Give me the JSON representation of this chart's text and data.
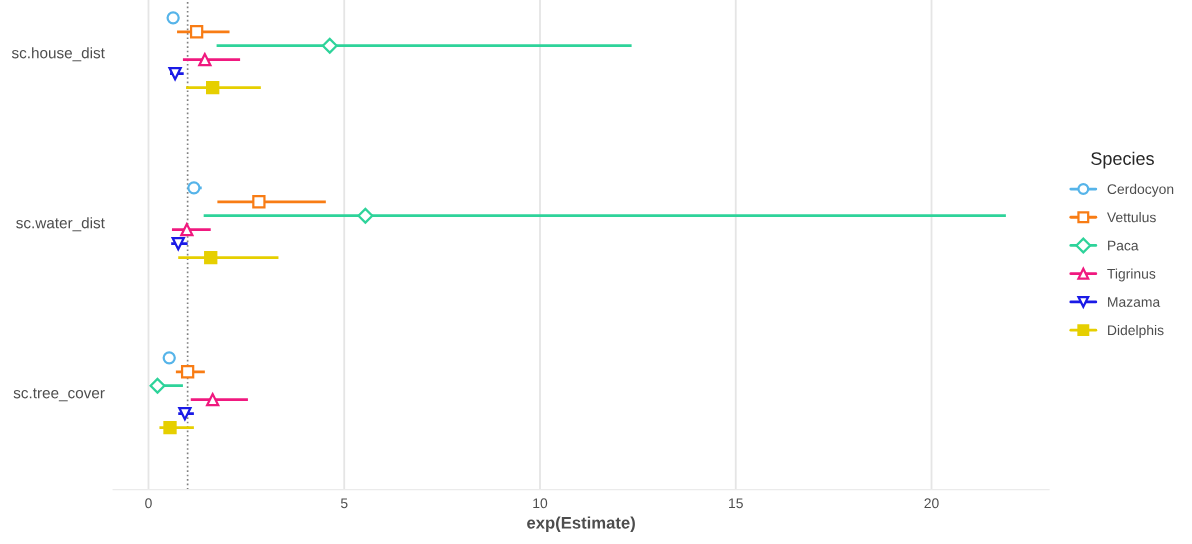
{
  "chart_data": {
    "type": "scatter",
    "orientation": "horizontal",
    "xlabel": "exp(Estimate)",
    "legend_title": "Species",
    "legend": "right",
    "grid": "x",
    "categories": [
      "sc.house_dist",
      "sc.water_dist",
      "sc.tree_cover"
    ],
    "xlim": [
      -0.9,
      23.0
    ],
    "xticks": [
      0,
      5,
      10,
      15,
      20
    ],
    "ref_lines": [
      {
        "axis": "x",
        "value": 1,
        "line_style": "dotted",
        "color": "#808080"
      }
    ],
    "series": [
      {
        "name": "Cerdocyon",
        "color": "#56b4e9",
        "marker": "circle",
        "values": [
          0.63,
          1.16,
          0.53
        ],
        "errors": [
          null,
          [
            1.06,
            1.36
          ],
          null
        ]
      },
      {
        "name": "Vettulus",
        "color": "#f87c14",
        "marker": "square",
        "values": [
          1.23,
          2.82,
          1.0
        ],
        "errors": [
          [
            0.73,
            2.07
          ],
          [
            1.76,
            4.53
          ],
          [
            0.7,
            1.44
          ]
        ]
      },
      {
        "name": "Paca",
        "color": "#2ed39a",
        "marker": "diamond",
        "values": [
          4.63,
          5.54,
          0.23
        ],
        "errors": [
          [
            1.74,
            12.34
          ],
          [
            1.41,
            21.9
          ],
          [
            0.22,
            0.88
          ]
        ]
      },
      {
        "name": "Tigrinus",
        "color": "#f0197f",
        "marker": "triangle",
        "values": [
          1.44,
          0.98,
          1.64
        ],
        "errors": [
          [
            0.88,
            2.34
          ],
          [
            0.6,
            1.59
          ],
          [
            1.08,
            2.54
          ]
        ]
      },
      {
        "name": "Mazama",
        "color": "#1a1ae6",
        "marker": "triangle_down",
        "values": [
          0.68,
          0.76,
          0.93
        ],
        "errors": [
          [
            0.55,
            0.9
          ],
          [
            0.58,
            1.0
          ],
          [
            0.76,
            1.16
          ]
        ]
      },
      {
        "name": "Didelphis",
        "color": "#e6cf00",
        "marker": "square_filled",
        "values": [
          1.64,
          1.59,
          0.55
        ],
        "errors": [
          [
            0.96,
            2.87
          ],
          [
            0.76,
            3.32
          ],
          [
            0.28,
            1.16
          ]
        ]
      }
    ]
  }
}
